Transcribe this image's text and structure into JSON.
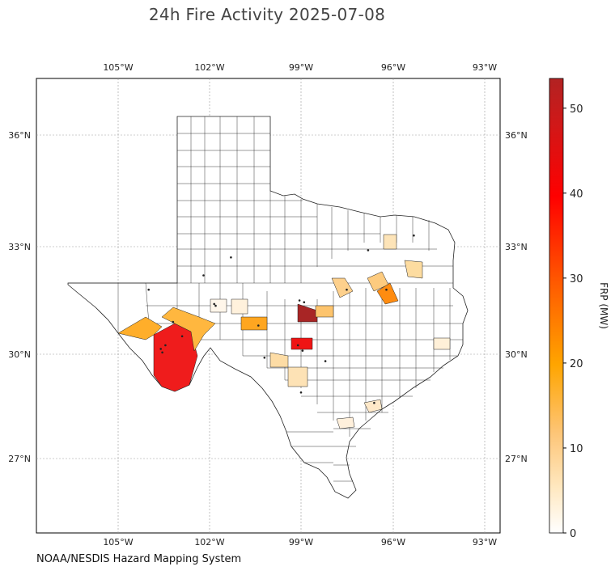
{
  "title": "24h Fire Activity 2025-07-08",
  "credit": "NOAA/NESDIS Hazard Mapping System",
  "map": {
    "lon_range": [
      -107.7,
      -92.5
    ],
    "lat_range": [
      24.7,
      37.4
    ],
    "lon_ticks": [
      {
        "value": -105,
        "label": "105°W"
      },
      {
        "value": -102,
        "label": "102°W"
      },
      {
        "value": -99,
        "label": "99°W"
      },
      {
        "value": -96,
        "label": "96°W"
      },
      {
        "value": -93,
        "label": "93°W"
      }
    ],
    "lat_ticks": [
      {
        "value": 36,
        "label": "36°N"
      },
      {
        "value": 33,
        "label": "33°N"
      },
      {
        "value": 30,
        "label": "30°N"
      },
      {
        "value": 27,
        "label": "27°N"
      }
    ],
    "gridlines": true
  },
  "colorbar": {
    "label": "FRP (MW)",
    "range": [
      0,
      53.5
    ],
    "ticks": [
      0,
      10,
      20,
      30,
      40,
      50
    ],
    "colors": [
      "#ffffff",
      "#ffe5b4",
      "#fdbf6f",
      "#ffa500",
      "#ff6600",
      "#ff0000",
      "#b22222"
    ]
  },
  "fire_counties": [
    {
      "id": "presidio-brewster",
      "frp": 43
    },
    {
      "id": "jeff-davis",
      "frp": 15
    },
    {
      "id": "pecos",
      "frp": 14
    },
    {
      "id": "crockett",
      "frp": 15
    },
    {
      "id": "coleman",
      "frp": 52
    },
    {
      "id": "kimble",
      "frp": 40
    },
    {
      "id": "kerr",
      "frp": 8
    },
    {
      "id": "edwards",
      "frp": 6
    },
    {
      "id": "tarrant",
      "frp": 12
    },
    {
      "id": "dallas",
      "frp": 24
    },
    {
      "id": "johnson",
      "frp": 8
    },
    {
      "id": "smith",
      "frp": 9
    },
    {
      "id": "upton",
      "frp": 3
    },
    {
      "id": "reagan",
      "frp": 2
    },
    {
      "id": "fannin",
      "frp": 5
    },
    {
      "id": "brown",
      "frp": 11
    },
    {
      "id": "tyler",
      "frp": 3
    },
    {
      "id": "victoria",
      "frp": 3
    }
  ],
  "fire_points": [
    {
      "lon": -103.6,
      "lat": 30.15
    },
    {
      "lon": -103.45,
      "lat": 30.25
    },
    {
      "lon": -103.55,
      "lat": 30.05
    },
    {
      "lon": -103.2,
      "lat": 30.9
    },
    {
      "lon": -102.9,
      "lat": 30.5
    },
    {
      "lon": -101.85,
      "lat": 31.4
    },
    {
      "lon": -101.8,
      "lat": 31.35
    },
    {
      "lon": -100.4,
      "lat": 30.8
    },
    {
      "lon": -99.1,
      "lat": 30.25
    },
    {
      "lon": -98.95,
      "lat": 30.1
    },
    {
      "lon": -99.05,
      "lat": 31.5
    },
    {
      "lon": -98.9,
      "lat": 31.45
    },
    {
      "lon": -96.2,
      "lat": 31.8
    },
    {
      "lon": -101.3,
      "lat": 32.7
    },
    {
      "lon": -102.2,
      "lat": 32.2
    },
    {
      "lon": -104.0,
      "lat": 31.8
    },
    {
      "lon": -99.0,
      "lat": 28.9
    },
    {
      "lon": -96.8,
      "lat": 32.9
    },
    {
      "lon": -95.3,
      "lat": 33.3
    },
    {
      "lon": -97.5,
      "lat": 31.8
    },
    {
      "lon": -96.6,
      "lat": 28.6
    },
    {
      "lon": -100.2,
      "lat": 29.9
    },
    {
      "lon": -98.2,
      "lat": 29.8
    }
  ]
}
